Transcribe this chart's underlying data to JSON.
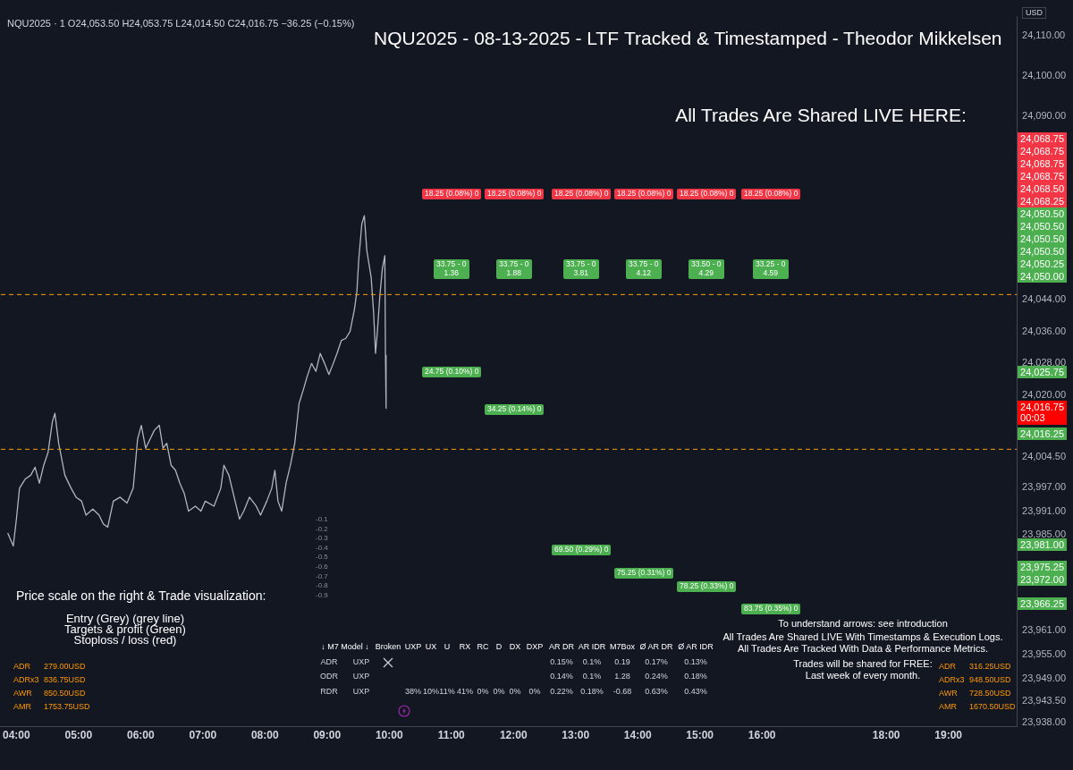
{
  "chart_data": [
    {
      "type": "line",
      "title": "NQU2025 - 08-13-2025 - LTF",
      "subtitle": "Tracked & Timestamped - Theodor Mikkelsen",
      "ylabel": "USD",
      "x": [
        3.86,
        3.95,
        4.0,
        4.05,
        4.14,
        4.23,
        4.3,
        4.37,
        4.44,
        4.51,
        4.58,
        4.62,
        4.68,
        4.78,
        4.88,
        4.96,
        5.05,
        5.12,
        5.23,
        5.33,
        5.4,
        5.47,
        5.56,
        5.67,
        5.78,
        5.88,
        5.95,
        6.01,
        6.08,
        6.15,
        6.22,
        6.3,
        6.36,
        6.42,
        6.49,
        6.56,
        6.63,
        6.7,
        6.77,
        6.88,
        6.97,
        7.04,
        7.18,
        7.29,
        7.34,
        7.42,
        7.52,
        7.59,
        7.66,
        7.75,
        7.86,
        7.93,
        8.03,
        8.11,
        8.16,
        8.21,
        8.27,
        8.34,
        8.41,
        8.48,
        8.55,
        8.62,
        8.68,
        8.75,
        8.82,
        8.89,
        8.96,
        9.03,
        9.1,
        9.16,
        9.23,
        9.3,
        9.37,
        9.44,
        9.48,
        9.51,
        9.56,
        9.6,
        9.64,
        9.71,
        9.75,
        9.78,
        9.81,
        9.85,
        9.89,
        9.93,
        9.94,
        9.95
      ],
      "series": [
        {
          "color": "#b2b5be",
          "values": [
            23985.5,
            23982.25,
            23989,
            23996.75,
            23999,
            24000,
            24002,
            23998,
            24002.5,
            24005.75,
            24013.5,
            24015.5,
            24008,
            24000,
            23996.75,
            23994.5,
            23993.5,
            23990,
            23991.5,
            23990,
            23987.75,
            23987,
            23993.5,
            23994.5,
            23993,
            23996.75,
            24009,
            24012.5,
            24006.75,
            24009,
            24011.25,
            24012.5,
            24006.75,
            24008,
            24002.5,
            24001.25,
            23998,
            23995.5,
            23991,
            23992.25,
            23991,
            23993.5,
            23992.25,
            23996.75,
            24002.5,
            24000,
            23993.5,
            23989,
            23991,
            23994.5,
            23992.25,
            23990,
            23993.5,
            23996.75,
            24001.25,
            23993.5,
            23991,
            23998,
            24002.5,
            24008,
            24018,
            24021.5,
            24024.75,
            24028,
            24026,
            24030.5,
            24028,
            24025.25,
            24028,
            24030.5,
            24033.75,
            24034.25,
            24036,
            24041.5,
            24046,
            24054,
            24063,
            24065,
            24056.25,
            24049.5,
            24040.5,
            24030.5,
            24036,
            24045,
            24051.75,
            24055,
            24030,
            24016.75
          ]
        }
      ],
      "xlim": [
        3.75,
        20.1
      ],
      "xticks": [
        {
          "value": 4,
          "label": "04:00"
        },
        {
          "value": 5,
          "label": "05:00"
        },
        {
          "value": 6,
          "label": "06:00"
        },
        {
          "value": 7,
          "label": "07:00"
        },
        {
          "value": 8,
          "label": "08:00"
        },
        {
          "value": 9,
          "label": "09:00"
        },
        {
          "value": 10,
          "label": "10:00"
        },
        {
          "value": 11,
          "label": "11:00"
        },
        {
          "value": 12,
          "label": "12:00"
        },
        {
          "value": 13,
          "label": "13:00"
        },
        {
          "value": 14,
          "label": "14:00"
        },
        {
          "value": 15,
          "label": "15:00"
        },
        {
          "value": 16,
          "label": "16:00"
        },
        {
          "value": 18,
          "label": "18:00"
        },
        {
          "value": 19,
          "label": "19:00"
        }
      ],
      "ylim": [
        23937,
        24115
      ],
      "yticks": [
        {
          "value": 24110,
          "label": "24,110.00"
        },
        {
          "value": 24100,
          "label": "24,100.00"
        },
        {
          "value": 24090,
          "label": "24,090.00"
        },
        {
          "value": 24044,
          "label": "24,044.00"
        },
        {
          "value": 24036,
          "label": "24,036.00"
        },
        {
          "value": 24028,
          "label": "24,028.00"
        },
        {
          "value": 24020,
          "label": "24,020.00"
        },
        {
          "value": 24004.5,
          "label": "24,004.50"
        },
        {
          "value": 23997,
          "label": "23,997.00"
        },
        {
          "value": 23991,
          "label": "23,991.00"
        },
        {
          "value": 23985,
          "label": "23,985.00"
        },
        {
          "value": 23961,
          "label": "23,961.00"
        },
        {
          "value": 23955,
          "label": "23,955.00"
        },
        {
          "value": 23949,
          "label": "23,949.00"
        },
        {
          "value": 23943.5,
          "label": "23,943.50"
        },
        {
          "value": 23938,
          "label": "23,938.00"
        }
      ],
      "ref_lines": [
        {
          "axis": "y",
          "value": 24045.25,
          "color": "#f7a600",
          "line_style": "dashed"
        },
        {
          "axis": "y",
          "value": 24006.5,
          "color": "#f7a600",
          "line_style": "dashed"
        }
      ],
      "annotations": [
        "Price scale on the right & Trade visualization:",
        "Entry (Grey) (grey line)",
        "Targets & profit (Green)",
        "Stoploss / loss (red)",
        "To understand arrows: see introduction",
        "All Trades Are Shared LIVE With Timestamps & Execution Logs.",
        "All Trades Are Tracked With Data & Performance Metrics.",
        "Trades will be shared for FREE:",
        "Last week of every month.",
        "All Trades Are Shared LIVE HERE:",
        "NQU2025 · 1 O24,053.50 H24,053.75 L24,014.50 C24,016.75 −36.25 (−0.15%)",
        "-0.1",
        "-0.2",
        "-0.3",
        "-0.4",
        "-0.5",
        "-0.6",
        "-0.7",
        "-0.8",
        "-0.9",
        "18.25 (0.08%) 0",
        "18.25 (0.08%) 0",
        "18.25 (0.08%) 0",
        "18.25 (0.08%) 0",
        "18.25 (0.08%) 0",
        "18.25 (0.08%) 0",
        "33.75 - 0\n1.36",
        "33.75 - 0\n1.88",
        "33.75 - 0\n3.81",
        "33.75 - 0\n4.12",
        "33.50 - 0\n4.29",
        "33.25 - 0\n4.59",
        "24.75 (0.10%) 0",
        "34.25 (0.14%) 0",
        "69.50 (0.29%) 0",
        "75.25 (0.31%) 0",
        "78.25 (0.33%) 0",
        "83.75 (0.35%) 0",
        "24,068.75",
        "24,068.75",
        "24,068.75",
        "24,068.75",
        "24,068.50",
        "24,068.25",
        "24,050.50",
        "24,050.50",
        "24,050.50",
        "24,050.50",
        "24,050.25",
        "24,050.00",
        "24,025.75",
        "24,016.75\n00:03",
        "24,016.25",
        "23,981.00",
        "23,975.25",
        "23,972.00",
        "23,966.25"
      ],
      "legend": false,
      "grid": false,
      "marker": "none"
    },
    {
      "type": "other",
      "categories": [
        "↓ M7 Model ↓",
        "Broken",
        "UXP",
        "UX",
        "U",
        "RX",
        "RC",
        "D",
        "DX",
        "DXP",
        "AR DR",
        "AR IDR",
        "M7Box",
        "Ø AR DR",
        "Ø AR IDR"
      ],
      "cell_labels": [
        [
          "ADR",
          "UXP",
          null,
          null,
          null,
          null,
          null,
          null,
          null,
          null,
          null,
          "0.15%",
          "0.1%",
          "0.19",
          "0.17%",
          "0.13%"
        ],
        [
          "ODR",
          "UXP",
          null,
          null,
          null,
          null,
          null,
          null,
          null,
          null,
          null,
          "0.14%",
          "0.1%",
          "1.28",
          "0.24%",
          "0.18%"
        ],
        [
          "RDR",
          "UXP",
          null,
          "38%",
          "10%",
          "11%",
          "41%",
          "0%",
          "0%",
          "0%",
          "0%",
          "0.22%",
          "0.18%",
          "-0.68",
          "0.63%",
          "0.43%"
        ]
      ]
    },
    {
      "type": "other",
      "cell_labels": [
        [
          "ADR",
          "279.00USD"
        ],
        [
          "ADRx3",
          "836.75USD"
        ],
        [
          "AWR",
          "850.50USD"
        ],
        [
          "AMR",
          "1753.75USD"
        ]
      ]
    },
    {
      "type": "other",
      "cell_labels": [
        [
          "ADR",
          "316.25USD"
        ],
        [
          "ADRx3",
          "948.50USD"
        ],
        [
          "AWR",
          "728.50USD"
        ],
        [
          "AMR",
          "1670.50USD"
        ]
      ]
    }
  ]
}
